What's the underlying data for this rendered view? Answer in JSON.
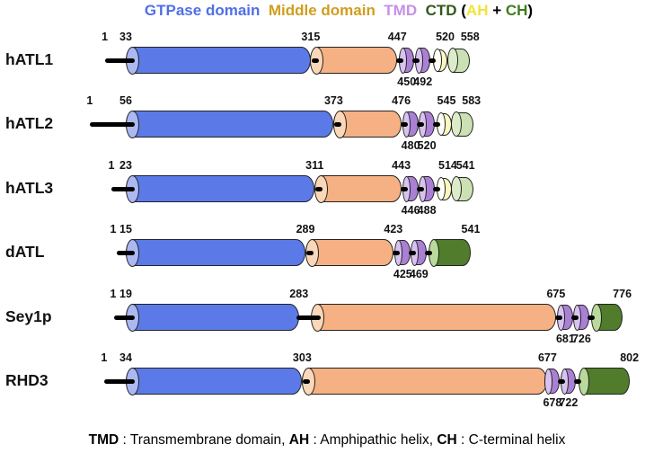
{
  "legend": {
    "parts": [
      {
        "t": "GTPase domain",
        "c": "#4f6fe6"
      },
      {
        "t": "  ",
        "c": "#000000"
      },
      {
        "t": "Middle domain",
        "c": "#d09d1e"
      },
      {
        "t": "  ",
        "c": "#000000"
      },
      {
        "t": "TMD",
        "c": "#c78fe8"
      },
      {
        "t": "  ",
        "c": "#000000"
      },
      {
        "t": "CTD ",
        "c": "#2f5a17"
      },
      {
        "t": "(",
        "c": "#000000"
      },
      {
        "t": "AH",
        "c": "#f2e438"
      },
      {
        "t": " + ",
        "c": "#000000"
      },
      {
        "t": "CH",
        "c": "#3f7d1a"
      },
      {
        "t": ")",
        "c": "#000000"
      }
    ]
  },
  "caption": {
    "parts": [
      {
        "t": "TMD",
        "b": true
      },
      {
        "t": " : Transmembrane domain, ",
        "b": false
      },
      {
        "t": "AH",
        "b": true
      },
      {
        "t": " : Amphipathic helix, ",
        "b": false
      },
      {
        "t": "CH",
        "b": true
      },
      {
        "t": " : C-terminal helix",
        "b": false
      }
    ]
  },
  "colors": {
    "gtpase_body": "#5b7ae8",
    "gtpase_cap": "#abb8f1",
    "middle_body": "#f5b183",
    "middle_cap": "#fad7b8",
    "tmd_body": "#aa80d4",
    "tmd_cap": "#d8c2ef",
    "ah_body": "#fbf7c0",
    "ah_cap": "#fffef4",
    "ch_light_body": "#cbe1b3",
    "ch_light_cap": "#dcecca",
    "ch_dark_body": "#507c2b",
    "ch_dark_cap": "#b9da9b",
    "outline": "#232323",
    "linker": "#000000"
  },
  "proteins": [
    {
      "name": "hATL1",
      "nterm_start": 1,
      "gtpase": {
        "start": 33,
        "end": 315
      },
      "middle": {
        "end": 447
      },
      "tmd": {
        "labels": [
          "450",
          "492"
        ],
        "attached": false
      },
      "ah": {
        "end": 520
      },
      "ch": {
        "end": 558,
        "shade": "light"
      }
    },
    {
      "name": "hATL2",
      "nterm_start": 1,
      "gtpase": {
        "start": 56,
        "end": 373
      },
      "middle": {
        "end": 476
      },
      "tmd": {
        "labels": [
          "480",
          "520"
        ],
        "attached": false
      },
      "ah": {
        "end": 545
      },
      "ch": {
        "end": 583,
        "shade": "light"
      }
    },
    {
      "name": "hATL3",
      "nterm_start": 1,
      "gtpase": {
        "start": 23,
        "end": 311
      },
      "middle": {
        "end": 443
      },
      "tmd": {
        "labels": [
          "446",
          "488"
        ],
        "attached": false
      },
      "ah": {
        "end": 514
      },
      "ch": {
        "end": 541,
        "shade": "light"
      }
    },
    {
      "name": "dATL",
      "nterm_start": 1,
      "gtpase": {
        "start": 15,
        "end": 289
      },
      "middle": {
        "end": 423
      },
      "tmd": {
        "labels": [
          "425",
          "469"
        ],
        "attached": false
      },
      "ch": {
        "end": 541,
        "shade": "dark"
      }
    },
    {
      "name": "Sey1p",
      "nterm_start": 1,
      "gtpase": {
        "start": 19,
        "end": 283
      },
      "middle": {
        "end": 675,
        "linker_gap": true
      },
      "tmd": {
        "labels": [
          "681",
          "726"
        ],
        "attached": false
      },
      "ch": {
        "end": 776,
        "shade": "dark"
      }
    },
    {
      "name": "RHD3",
      "nterm_start": 1,
      "gtpase": {
        "start": 34,
        "end": 303
      },
      "middle": {
        "end": 677
      },
      "tmd": {
        "labels": [
          "678",
          "722"
        ],
        "attached": true
      },
      "ch": {
        "end": 802,
        "shade": "dark"
      }
    }
  ]
}
